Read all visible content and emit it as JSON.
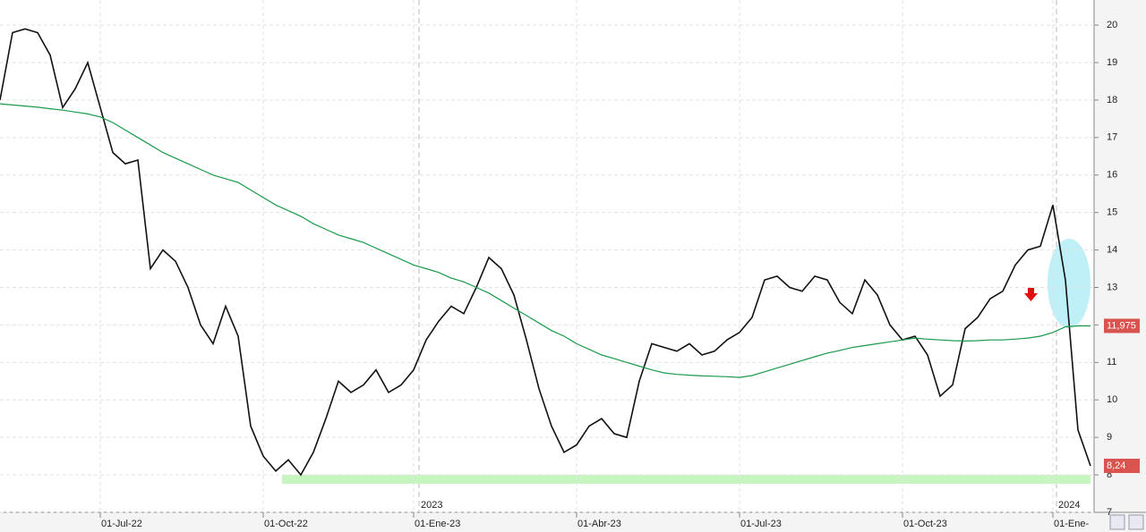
{
  "chart_data": {
    "type": "line",
    "categories": [
      null,
      null,
      null,
      null,
      null,
      null,
      null,
      null,
      "01-Jul-22",
      null,
      null,
      null,
      null,
      null,
      null,
      null,
      null,
      null,
      null,
      null,
      null,
      "01-Oct-22",
      null,
      null,
      null,
      null,
      null,
      null,
      null,
      null,
      null,
      null,
      null,
      "01-Ene-23",
      null,
      null,
      null,
      null,
      null,
      null,
      null,
      null,
      null,
      null,
      null,
      null,
      "01-Abr-23",
      null,
      null,
      null,
      null,
      null,
      null,
      null,
      null,
      null,
      null,
      null,
      null,
      "01-Jul-23",
      null,
      null,
      null,
      null,
      null,
      null,
      null,
      null,
      null,
      null,
      null,
      null,
      "01-Oct-23",
      null,
      null,
      null,
      null,
      null,
      null,
      null,
      null,
      null,
      null,
      null,
      "01-Ene-",
      null,
      null,
      null
    ],
    "series": [
      {
        "color": "#111111",
        "values": [
          18.0,
          19.8,
          19.9,
          19.8,
          19.2,
          17.8,
          18.3,
          19.0,
          17.8,
          16.6,
          16.3,
          16.4,
          13.5,
          14.0,
          13.7,
          13.0,
          12.0,
          11.5,
          12.5,
          11.7,
          9.3,
          8.5,
          8.1,
          8.4,
          8.0,
          8.6,
          9.5,
          10.5,
          10.2,
          10.4,
          10.8,
          10.2,
          10.4,
          10.8,
          11.6,
          12.1,
          12.5,
          12.3,
          13.0,
          13.8,
          13.5,
          12.8,
          11.6,
          10.3,
          9.3,
          8.6,
          8.8,
          9.3,
          9.5,
          9.1,
          9.0,
          10.5,
          11.5,
          11.4,
          11.3,
          11.5,
          11.2,
          11.3,
          11.6,
          11.8,
          12.2,
          13.2,
          13.3,
          13.0,
          12.9,
          13.3,
          13.2,
          12.6,
          12.3,
          13.2,
          12.8,
          12.0,
          11.6,
          11.7,
          11.2,
          10.1,
          10.4,
          11.9,
          12.2,
          12.7,
          12.9,
          13.6,
          14.0,
          14.1,
          15.2,
          13.2,
          9.2,
          8.24
        ]
      },
      {
        "color": "#1a9a4a",
        "values": [
          17.9,
          17.87,
          17.84,
          17.81,
          17.77,
          17.73,
          17.68,
          17.63,
          17.55,
          17.4,
          17.2,
          17.0,
          16.8,
          16.6,
          16.45,
          16.3,
          16.15,
          16.0,
          15.9,
          15.8,
          15.6,
          15.4,
          15.2,
          15.05,
          14.9,
          14.7,
          14.55,
          14.4,
          14.3,
          14.2,
          14.05,
          13.9,
          13.75,
          13.6,
          13.5,
          13.4,
          13.25,
          13.15,
          13.0,
          12.85,
          12.65,
          12.45,
          12.25,
          12.05,
          11.85,
          11.7,
          11.5,
          11.35,
          11.2,
          11.1,
          11.0,
          10.9,
          10.8,
          10.72,
          10.68,
          10.66,
          10.64,
          10.63,
          10.62,
          10.6,
          10.65,
          10.75,
          10.85,
          10.95,
          11.05,
          11.15,
          11.25,
          11.32,
          11.4,
          11.45,
          11.5,
          11.55,
          11.6,
          11.65,
          11.62,
          11.6,
          11.58,
          11.57,
          11.58,
          11.6,
          11.6,
          11.62,
          11.65,
          11.7,
          11.8,
          11.95,
          11.975,
          11.975
        ]
      }
    ],
    "year_labels": [
      "2023",
      "2024"
    ],
    "annotations": [
      {
        "value": 11.975,
        "label": "11,975"
      },
      {
        "value": 8.24,
        "label": "8,24"
      }
    ],
    "ylim": [
      7,
      20.67
    ],
    "yticks": [
      7,
      8,
      9,
      10,
      11,
      12,
      13,
      14,
      15,
      16,
      17,
      18,
      19,
      20
    ],
    "grid": true
  }
}
